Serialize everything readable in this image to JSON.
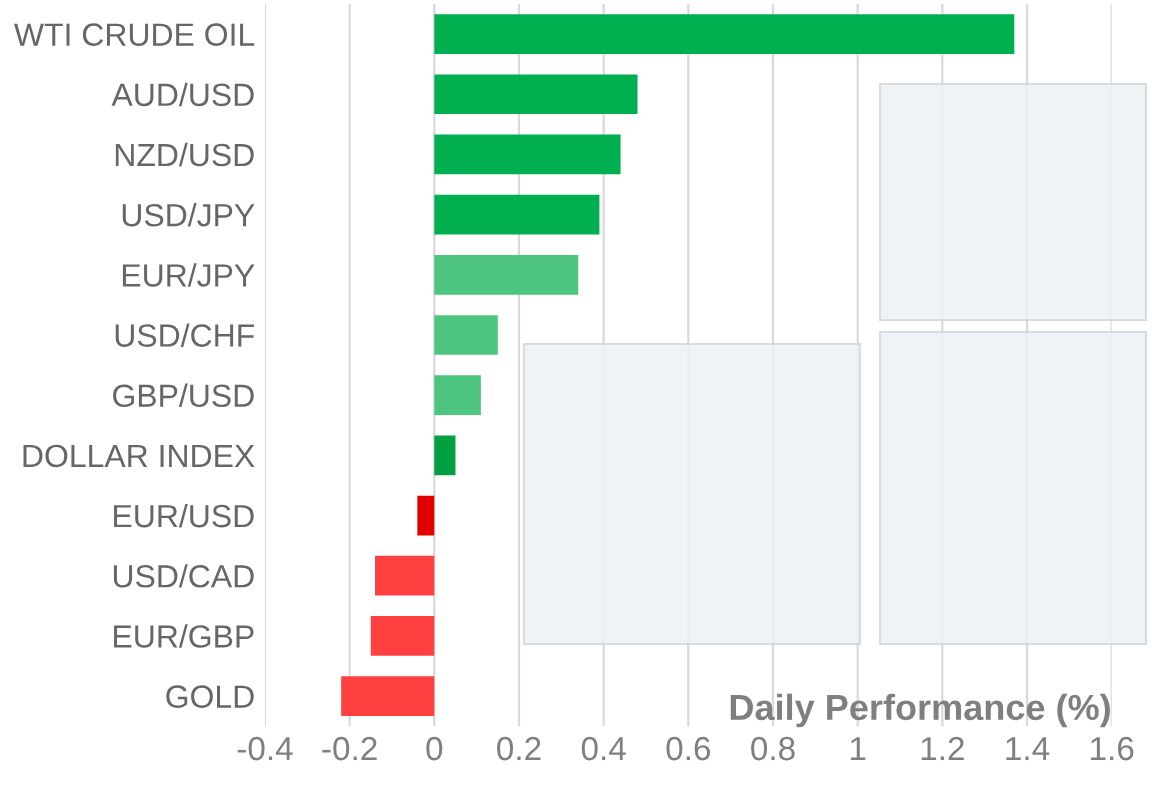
{
  "chart_data": {
    "type": "bar",
    "orientation": "horizontal",
    "xlabel": "Daily Performance (%)",
    "categories": [
      "WTI CRUDE OIL",
      "AUD/USD",
      "NZD/USD",
      "USD/JPY",
      "EUR/JPY",
      "USD/CHF",
      "GBP/USD",
      "DOLLAR INDEX",
      "EUR/USD",
      "USD/CAD",
      "EUR/GBP",
      "GOLD"
    ],
    "values": [
      1.37,
      0.48,
      0.44,
      0.39,
      0.34,
      0.15,
      0.11,
      0.05,
      -0.04,
      -0.14,
      -0.15,
      -0.22
    ],
    "colors": [
      "#00b050",
      "#00b050",
      "#00b050",
      "#00b050",
      "#4dc47f",
      "#4dc47f",
      "#4dc47f",
      "#00a040",
      "#e00000",
      "#ff4040",
      "#ff4040",
      "#ff4040"
    ],
    "xlim": [
      -0.4,
      1.6
    ],
    "xticks": [
      -0.4,
      -0.2,
      0,
      0.2,
      0.4,
      0.6,
      0.8,
      1,
      1.2,
      1.4,
      1.6
    ],
    "grid": "x",
    "legend": false
  }
}
